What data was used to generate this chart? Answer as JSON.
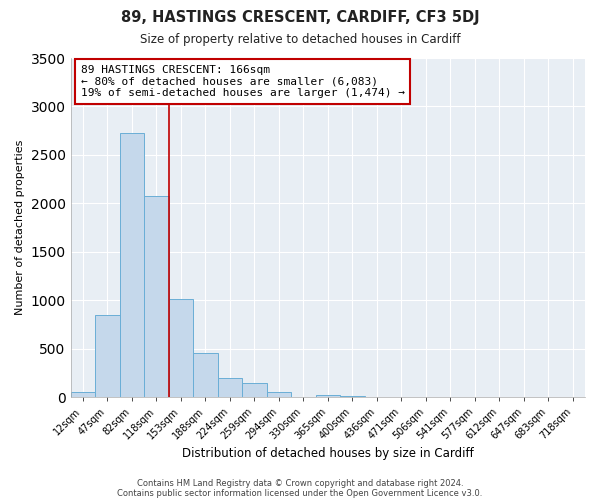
{
  "title": "89, HASTINGS CRESCENT, CARDIFF, CF3 5DJ",
  "subtitle": "Size of property relative to detached houses in Cardiff",
  "xlabel": "Distribution of detached houses by size in Cardiff",
  "ylabel": "Number of detached properties",
  "bar_labels": [
    "12sqm",
    "47sqm",
    "82sqm",
    "118sqm",
    "153sqm",
    "188sqm",
    "224sqm",
    "259sqm",
    "294sqm",
    "330sqm",
    "365sqm",
    "400sqm",
    "436sqm",
    "471sqm",
    "506sqm",
    "541sqm",
    "577sqm",
    "612sqm",
    "647sqm",
    "683sqm",
    "718sqm"
  ],
  "bar_values": [
    55,
    850,
    2730,
    2075,
    1010,
    455,
    205,
    145,
    55,
    0,
    25,
    15,
    0,
    0,
    0,
    0,
    0,
    0,
    0,
    0,
    0
  ],
  "bar_color": "#c5d8eb",
  "bar_edgecolor": "#6aaed6",
  "vline_color": "#c00000",
  "ylim": [
    0,
    3500
  ],
  "yticks": [
    0,
    500,
    1000,
    1500,
    2000,
    2500,
    3000,
    3500
  ],
  "annotation_title": "89 HASTINGS CRESCENT: 166sqm",
  "annotation_line1": "← 80% of detached houses are smaller (6,083)",
  "annotation_line2": "19% of semi-detached houses are larger (1,474) →",
  "annotation_box_color": "#c00000",
  "footer1": "Contains HM Land Registry data © Crown copyright and database right 2024.",
  "footer2": "Contains public sector information licensed under the Open Government Licence v3.0.",
  "bg_color": "#ffffff",
  "plot_bg_color": "#e8eef4",
  "grid_color": "#ffffff",
  "title_fontsize": 10.5,
  "subtitle_fontsize": 8.5,
  "ylabel_fontsize": 8,
  "xlabel_fontsize": 8.5,
  "tick_fontsize": 7,
  "annotation_fontsize": 8,
  "footer_fontsize": 6
}
